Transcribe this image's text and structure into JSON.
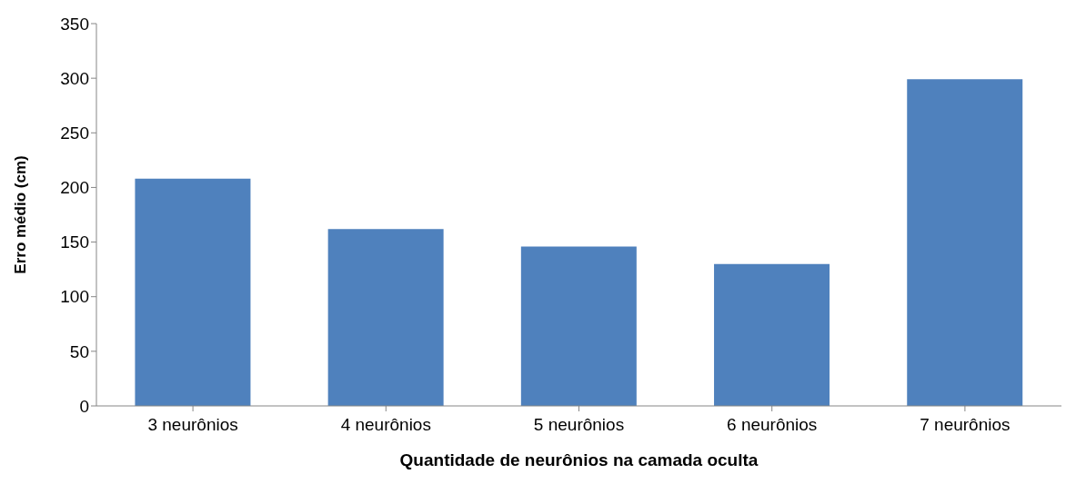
{
  "chart_data": {
    "type": "bar",
    "xlabel": "Quantidade de neurônios na camada oculta",
    "ylabel": "Erro médio (cm)",
    "categories": [
      "3 neurônios",
      "4 neurônios",
      "5 neurônios",
      "6 neurônios",
      "7 neurônios"
    ],
    "values": [
      208,
      162,
      146,
      130,
      299
    ],
    "color": "#4f81bd",
    "ylim": [
      0,
      350
    ],
    "yticks": [
      0,
      50,
      100,
      150,
      200,
      250,
      300,
      350
    ],
    "grid": false
  }
}
